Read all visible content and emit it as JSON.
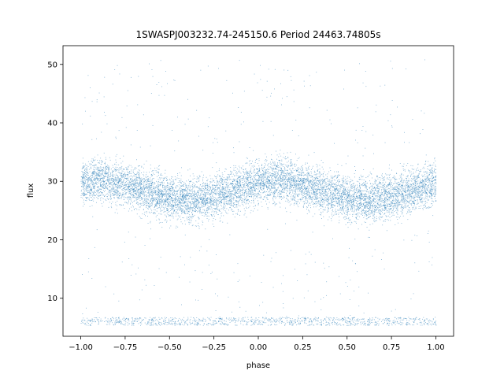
{
  "chart_data": {
    "type": "scatter",
    "title": "1SWASPJ003232.74-245150.6 Period 24463.74805s",
    "xlabel": "phase",
    "ylabel": "flux",
    "xlim": [
      -1.1,
      1.1
    ],
    "ylim": [
      3.5,
      53.2
    ],
    "xticks": [
      -1.0,
      -0.75,
      -0.5,
      -0.25,
      0.0,
      0.25,
      0.5,
      0.75,
      1.0
    ],
    "xtick_labels": [
      "−1.00",
      "−0.75",
      "−0.50",
      "−0.25",
      "0.00",
      "0.25",
      "0.50",
      "0.75",
      "1.00"
    ],
    "yticks": [
      10,
      20,
      30,
      40,
      50
    ],
    "ytick_labels": [
      "10",
      "20",
      "30",
      "40",
      "50"
    ],
    "grid": false,
    "marker_color": "#1f77b4",
    "series": [
      {
        "phase_range": [
          -1.0,
          1.0
        ],
        "main_band": {
          "mean_flux_by_phase": [
            [
              -1.0,
              29.8
            ],
            [
              -0.875,
              30.3
            ],
            [
              -0.75,
              29.5
            ],
            [
              -0.625,
              28.2
            ],
            [
              -0.5,
              27.3
            ],
            [
              -0.375,
              26.8
            ],
            [
              -0.25,
              27.5
            ],
            [
              -0.125,
              28.6
            ],
            [
              0.0,
              29.8
            ],
            [
              0.125,
              30.3
            ],
            [
              0.25,
              29.5
            ],
            [
              0.375,
              28.2
            ],
            [
              0.5,
              27.3
            ],
            [
              0.625,
              26.8
            ],
            [
              0.75,
              27.5
            ],
            [
              0.875,
              28.6
            ],
            [
              1.0,
              29.8
            ]
          ],
          "band_half_width": 4.0
        },
        "low_band": {
          "flux_range": [
            5.4,
            6.8
          ]
        },
        "outlier_flux_range": [
          6.0,
          51.0
        ]
      }
    ]
  }
}
